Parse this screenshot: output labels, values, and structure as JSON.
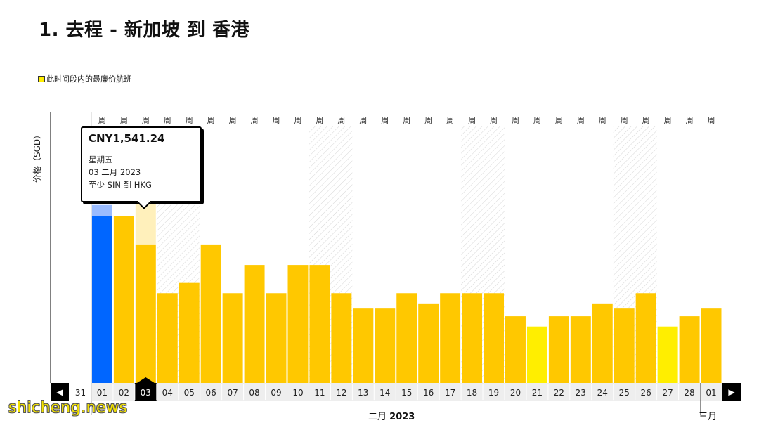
{
  "page": {
    "title": "1. 去程 - 新加坡 到 香港"
  },
  "legend": {
    "label": "此时间段内的最廉价航班",
    "swatch_color": "#ffee00"
  },
  "axis": {
    "ylabel": "价格（SGD）"
  },
  "tooltip": {
    "price": "CNY1,541.24",
    "weekday": "星期五",
    "date": "03 二月 2023",
    "route": "至少 SIN 到 HKG"
  },
  "months": {
    "feb_label": "二月",
    "feb_year": "2023",
    "mar_label": "三月"
  },
  "nav": {
    "prev_icon": "◀",
    "next_icon": "▶"
  },
  "watermark": "shicheng.news",
  "chart_data": {
    "type": "bar",
    "categories": [
      "31",
      "01",
      "02",
      "03",
      "04",
      "05",
      "06",
      "07",
      "08",
      "09",
      "10",
      "11",
      "12",
      "13",
      "14",
      "15",
      "16",
      "17",
      "18",
      "19",
      "20",
      "21",
      "22",
      "23",
      "24",
      "25",
      "26",
      "27",
      "28",
      "01"
    ],
    "week_header": [
      "",
      "周",
      "周",
      "周",
      "周",
      "周",
      "周",
      "周",
      "周",
      "周",
      "周",
      "周",
      "周",
      "周",
      "周",
      "周",
      "周",
      "周",
      "周",
      "周",
      "周",
      "周",
      "周",
      "周",
      "周",
      "周",
      "周",
      "周",
      "周",
      "周"
    ],
    "values": [
      null,
      65,
      65,
      54,
      35,
      39,
      54,
      35,
      46,
      35,
      46,
      46,
      35,
      29,
      29,
      35,
      31,
      35,
      35,
      35,
      26,
      22,
      26,
      26,
      31,
      29,
      35,
      22,
      26,
      29
    ],
    "cheapest": [
      "21",
      "27"
    ],
    "selected": "01",
    "hovered": "03",
    "weekend_columns": [
      "04",
      "05",
      "11",
      "12",
      "18",
      "19",
      "25",
      "26"
    ],
    "ylim": [
      0,
      100
    ],
    "colors": {
      "bar": "#ffc800",
      "cheapest": "#ffee00",
      "selected": "#0066ff",
      "selected_cap": "#99bbff",
      "hover_cap": "#fff0bb"
    }
  }
}
